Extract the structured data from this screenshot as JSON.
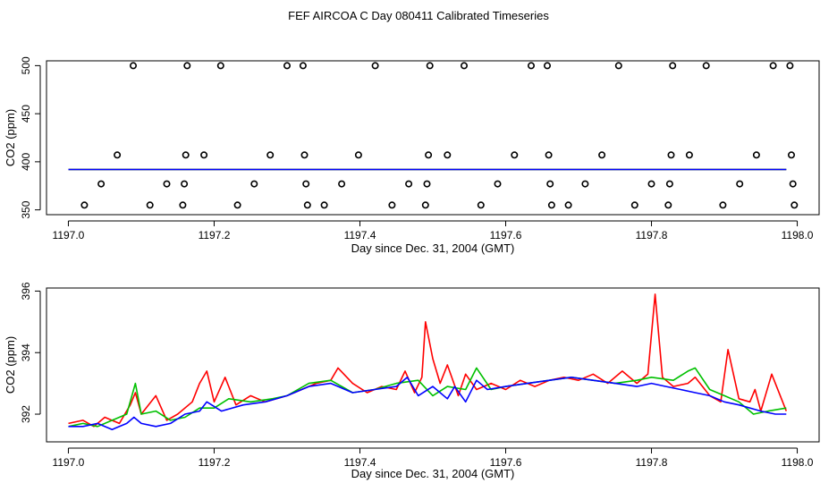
{
  "figure_title": "FEF AIRCOA C  Day 080411  Calibrated Timeseries",
  "colors": {
    "red": "#ff0000",
    "green": "#00c000",
    "blue": "#0000ff",
    "axis": "#000000"
  },
  "chart_data": [
    {
      "type": "scatter",
      "xlabel": "Day since Dec. 31, 2004 (GMT)",
      "ylabel": "CO2 (ppm)",
      "xlim": [
        1196.97,
        1198.03
      ],
      "ylim": [
        345,
        505
      ],
      "xticks": [
        1197.0,
        1197.2,
        1197.4,
        1197.6,
        1197.8,
        1198.0
      ],
      "xtick_labels": [
        "1197.0",
        "1197.2",
        "1197.4",
        "1197.6",
        "1197.8",
        "1198.0"
      ],
      "yticks": [
        350,
        400,
        450,
        500
      ],
      "ytick_labels": [
        "350",
        "400",
        "450",
        "500"
      ],
      "marker_points": [
        [
          1197.022,
          355
        ],
        [
          1197.045,
          377
        ],
        [
          1197.067,
          407
        ],
        [
          1197.089,
          500
        ],
        [
          1197.112,
          355
        ],
        [
          1197.135,
          377
        ],
        [
          1197.157,
          355
        ],
        [
          1197.159,
          377
        ],
        [
          1197.161,
          407
        ],
        [
          1197.163,
          500
        ],
        [
          1197.186,
          407
        ],
        [
          1197.209,
          500
        ],
        [
          1197.232,
          355
        ],
        [
          1197.255,
          377
        ],
        [
          1197.277,
          407
        ],
        [
          1197.3,
          500
        ],
        [
          1197.322,
          500
        ],
        [
          1197.324,
          407
        ],
        [
          1197.326,
          377
        ],
        [
          1197.328,
          355
        ],
        [
          1197.351,
          355
        ],
        [
          1197.375,
          377
        ],
        [
          1197.398,
          407
        ],
        [
          1197.421,
          500
        ],
        [
          1197.444,
          355
        ],
        [
          1197.467,
          377
        ],
        [
          1197.49,
          355
        ],
        [
          1197.492,
          377
        ],
        [
          1197.494,
          407
        ],
        [
          1197.496,
          500
        ],
        [
          1197.52,
          407
        ],
        [
          1197.543,
          500
        ],
        [
          1197.566,
          355
        ],
        [
          1197.589,
          377
        ],
        [
          1197.612,
          407
        ],
        [
          1197.635,
          500
        ],
        [
          1197.657,
          500
        ],
        [
          1197.659,
          407
        ],
        [
          1197.661,
          377
        ],
        [
          1197.663,
          355
        ],
        [
          1197.686,
          355
        ],
        [
          1197.709,
          377
        ],
        [
          1197.732,
          407
        ],
        [
          1197.755,
          500
        ],
        [
          1197.777,
          355
        ],
        [
          1197.8,
          377
        ],
        [
          1197.823,
          355
        ],
        [
          1197.825,
          377
        ],
        [
          1197.827,
          407
        ],
        [
          1197.829,
          500
        ],
        [
          1197.852,
          407
        ],
        [
          1197.875,
          500
        ],
        [
          1197.898,
          355
        ],
        [
          1197.921,
          377
        ],
        [
          1197.944,
          407
        ],
        [
          1197.967,
          500
        ],
        [
          1197.99,
          500
        ],
        [
          1197.992,
          407
        ],
        [
          1197.994,
          377
        ],
        [
          1197.996,
          355
        ]
      ],
      "series": [
        {
          "color": "#ff0000",
          "x": [
            1197.0,
            1197.25,
            1197.5,
            1197.75,
            1197.985
          ],
          "y": [
            392,
            392,
            392,
            392,
            392
          ]
        },
        {
          "color": "#00c000",
          "x": [
            1197.0,
            1197.25,
            1197.5,
            1197.75,
            1197.985
          ],
          "y": [
            392,
            392,
            392,
            392,
            392
          ]
        },
        {
          "color": "#0000ff",
          "x": [
            1197.0,
            1197.25,
            1197.5,
            1197.75,
            1197.985
          ],
          "y": [
            392,
            392,
            392,
            392,
            392
          ]
        }
      ]
    },
    {
      "type": "line",
      "xlabel": "Day since Dec. 31, 2004 (GMT)",
      "ylabel": "CO2 (ppm)",
      "xlim": [
        1196.97,
        1198.03
      ],
      "ylim": [
        391.1,
        396.1
      ],
      "xticks": [
        1197.0,
        1197.2,
        1197.4,
        1197.6,
        1197.8,
        1198.0
      ],
      "xtick_labels": [
        "1197.0",
        "1197.2",
        "1197.4",
        "1197.6",
        "1197.8",
        "1198.0"
      ],
      "yticks": [
        392,
        394,
        396
      ],
      "ytick_labels": [
        "392",
        "394",
        "396"
      ],
      "series": [
        {
          "color": "#ff0000",
          "x": [
            1197.0,
            1197.02,
            1197.035,
            1197.05,
            1197.07,
            1197.085,
            1197.092,
            1197.1,
            1197.12,
            1197.135,
            1197.15,
            1197.17,
            1197.18,
            1197.19,
            1197.2,
            1197.215,
            1197.23,
            1197.25,
            1197.27,
            1197.3,
            1197.32,
            1197.34,
            1197.36,
            1197.37,
            1197.39,
            1197.41,
            1197.43,
            1197.45,
            1197.462,
            1197.475,
            1197.485,
            1197.49,
            1197.5,
            1197.51,
            1197.52,
            1197.535,
            1197.545,
            1197.56,
            1197.58,
            1197.6,
            1197.62,
            1197.64,
            1197.66,
            1197.68,
            1197.7,
            1197.72,
            1197.74,
            1197.76,
            1197.78,
            1197.795,
            1197.805,
            1197.815,
            1197.83,
            1197.85,
            1197.86,
            1197.88,
            1197.895,
            1197.905,
            1197.92,
            1197.935,
            1197.942,
            1197.95,
            1197.965,
            1197.985
          ],
          "y": [
            391.7,
            391.8,
            391.6,
            391.9,
            391.7,
            392.3,
            392.7,
            392.0,
            392.6,
            391.8,
            392.0,
            392.4,
            393.0,
            393.4,
            392.4,
            393.2,
            392.3,
            392.6,
            392.4,
            392.6,
            392.8,
            393.0,
            393.1,
            393.5,
            393.0,
            392.7,
            392.9,
            392.8,
            393.4,
            392.7,
            393.2,
            395.0,
            393.8,
            393.0,
            393.6,
            392.6,
            393.3,
            392.8,
            393.0,
            392.8,
            393.1,
            392.9,
            393.1,
            393.2,
            393.1,
            393.3,
            393.0,
            393.4,
            393.0,
            393.3,
            395.9,
            393.2,
            392.9,
            393.0,
            393.2,
            392.6,
            392.4,
            394.1,
            392.5,
            392.4,
            392.8,
            392.1,
            393.3,
            392.1
          ]
        },
        {
          "color": "#00c000",
          "x": [
            1197.0,
            1197.02,
            1197.04,
            1197.06,
            1197.08,
            1197.092,
            1197.1,
            1197.12,
            1197.14,
            1197.16,
            1197.18,
            1197.2,
            1197.22,
            1197.25,
            1197.28,
            1197.3,
            1197.33,
            1197.36,
            1197.39,
            1197.42,
            1197.45,
            1197.48,
            1197.5,
            1197.52,
            1197.545,
            1197.56,
            1197.58,
            1197.6,
            1197.63,
            1197.66,
            1197.69,
            1197.72,
            1197.75,
            1197.78,
            1197.8,
            1197.83,
            1197.85,
            1197.86,
            1197.88,
            1197.9,
            1197.92,
            1197.94,
            1197.96,
            1197.985
          ],
          "y": [
            391.6,
            391.7,
            391.6,
            391.8,
            392.0,
            393.0,
            392.0,
            392.1,
            391.8,
            391.9,
            392.2,
            392.2,
            392.5,
            392.4,
            392.5,
            392.6,
            393.0,
            393.1,
            392.7,
            392.8,
            393.0,
            393.1,
            392.6,
            392.9,
            392.8,
            393.5,
            392.8,
            392.9,
            393.0,
            393.1,
            393.2,
            393.1,
            393.0,
            393.1,
            393.2,
            393.1,
            393.4,
            393.5,
            392.8,
            392.6,
            392.4,
            392.0,
            392.1,
            392.2
          ]
        },
        {
          "color": "#0000ff",
          "x": [
            1197.0,
            1197.02,
            1197.04,
            1197.06,
            1197.08,
            1197.09,
            1197.1,
            1197.12,
            1197.14,
            1197.16,
            1197.18,
            1197.19,
            1197.21,
            1197.24,
            1197.27,
            1197.3,
            1197.33,
            1197.36,
            1197.39,
            1197.42,
            1197.45,
            1197.465,
            1197.48,
            1197.5,
            1197.52,
            1197.53,
            1197.545,
            1197.56,
            1197.575,
            1197.6,
            1197.63,
            1197.66,
            1197.69,
            1197.72,
            1197.75,
            1197.78,
            1197.8,
            1197.82,
            1197.84,
            1197.86,
            1197.88,
            1197.9,
            1197.92,
            1197.95,
            1197.97,
            1197.985
          ],
          "y": [
            391.6,
            391.6,
            391.7,
            391.5,
            391.7,
            391.9,
            391.7,
            391.6,
            391.7,
            392.0,
            392.1,
            392.4,
            392.1,
            392.3,
            392.4,
            392.6,
            392.9,
            393.0,
            392.7,
            392.8,
            392.9,
            393.2,
            392.6,
            392.9,
            392.5,
            392.9,
            392.4,
            393.1,
            392.8,
            392.9,
            393.0,
            393.1,
            393.2,
            393.1,
            393.0,
            392.9,
            393.0,
            392.9,
            392.8,
            392.7,
            392.6,
            392.4,
            392.3,
            392.1,
            392.0,
            392.0
          ]
        }
      ]
    }
  ]
}
